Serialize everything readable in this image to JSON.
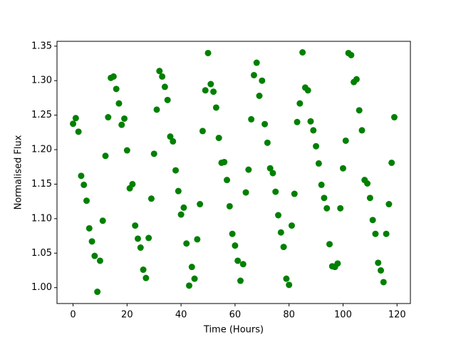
{
  "chart_data": {
    "type": "scatter",
    "x_label": "Time (Hours)",
    "y_label": "Normalised Flux",
    "xlim": [
      -5.95,
      124.95
    ],
    "ylim": [
      0.977,
      1.357
    ],
    "xticks": [
      0,
      20,
      40,
      60,
      80,
      100,
      120
    ],
    "yticks": [
      {
        "value": 1.0,
        "label": "1.00"
      },
      {
        "value": 1.05,
        "label": "1.05"
      },
      {
        "value": 1.1,
        "label": "1.10"
      },
      {
        "value": 1.15,
        "label": "1.15"
      },
      {
        "value": 1.2,
        "label": "1.20"
      },
      {
        "value": 1.25,
        "label": "1.25"
      },
      {
        "value": 1.3,
        "label": "1.30"
      },
      {
        "value": 1.35,
        "label": "1.35"
      }
    ],
    "grid": false,
    "color": "#008000",
    "x": [
      0,
      1,
      2,
      3,
      4,
      5,
      6,
      7,
      8,
      9,
      10,
      11,
      12,
      13,
      14,
      15,
      16,
      17,
      18,
      19,
      20,
      21,
      22,
      23,
      24,
      25,
      26,
      27,
      28,
      29,
      30,
      31,
      32,
      33,
      34,
      35,
      36,
      37,
      38,
      39,
      40,
      41,
      42,
      43,
      44,
      45,
      46,
      47,
      48,
      49,
      50,
      51,
      52,
      53,
      54,
      55,
      56,
      57,
      58,
      59,
      60,
      61,
      62,
      63,
      64,
      65,
      66,
      67,
      68,
      69,
      70,
      71,
      72,
      73,
      74,
      75,
      76,
      77,
      78,
      79,
      80,
      81,
      82,
      83,
      84,
      85,
      86,
      87,
      88,
      89,
      90,
      91,
      92,
      93,
      94,
      95,
      96,
      97,
      98,
      99,
      100,
      101,
      102,
      103,
      104,
      105,
      106,
      107,
      108,
      109,
      110,
      111,
      112,
      113,
      114,
      115,
      116,
      117,
      118,
      119
    ],
    "y": [
      1.2375,
      1.2457,
      1.226,
      1.162,
      1.149,
      1.126,
      1.086,
      1.067,
      1.046,
      0.994,
      1.039,
      1.097,
      1.191,
      1.247,
      1.304,
      1.306,
      1.288,
      1.267,
      1.236,
      1.245,
      1.199,
      1.144,
      1.15,
      1.09,
      1.071,
      1.058,
      1.026,
      1.014,
      1.072,
      1.129,
      1.194,
      1.258,
      1.314,
      1.306,
      1.291,
      1.272,
      1.219,
      1.212,
      1.17,
      1.14,
      1.106,
      1.116,
      1.064,
      1.003,
      1.03,
      1.013,
      1.07,
      1.121,
      1.227,
      1.286,
      1.34,
      1.295,
      1.284,
      1.261,
      1.217,
      1.181,
      1.182,
      1.156,
      1.118,
      1.078,
      1.061,
      1.039,
      1.01,
      1.034,
      1.138,
      1.171,
      1.244,
      1.308,
      1.326,
      1.278,
      1.3,
      1.237,
      1.21,
      1.173,
      1.166,
      1.139,
      1.105,
      1.08,
      1.059,
      1.013,
      1.004,
      1.09,
      1.136,
      1.24,
      1.267,
      1.341,
      1.29,
      1.286,
      1.241,
      1.228,
      1.205,
      1.18,
      1.149,
      1.13,
      1.115,
      1.063,
      1.031,
      1.03,
      1.035,
      1.115,
      1.173,
      1.213,
      1.34,
      1.337,
      1.298,
      1.302,
      1.257,
      1.228,
      1.156,
      1.151,
      1.13,
      1.098,
      1.078,
      1.036,
      1.025,
      1.008,
      1.078,
      1.121,
      1.181,
      1.247
    ]
  }
}
